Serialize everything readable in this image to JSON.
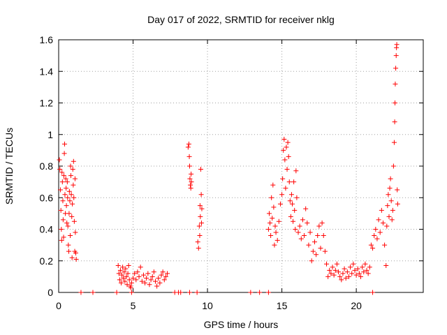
{
  "chart_data": {
    "type": "scatter",
    "title": "Day 017 of 2022, SRMTID for receiver nklg",
    "xlabel": "GPS time / hours",
    "ylabel": "SRMTID / TECUs",
    "xlim": [
      0,
      24.5
    ],
    "ylim": [
      0,
      1.6
    ],
    "xticks": [
      0,
      5,
      10,
      15,
      20
    ],
    "yticks": [
      0,
      0.2,
      0.4,
      0.6,
      0.8,
      1,
      1.2,
      1.4,
      1.6
    ],
    "ytick_labels": [
      "0",
      "0.2",
      "0.4",
      "0.6",
      "0.8",
      "1",
      "1.2",
      "1.4",
      "1.6"
    ],
    "grid": true,
    "marker": "+",
    "color": "#ff0000",
    "series": [
      {
        "name": "SRMTID",
        "points": [
          [
            0.05,
            0.84
          ],
          [
            0.08,
            0.78
          ],
          [
            0.12,
            0.65
          ],
          [
            0.15,
            0.52
          ],
          [
            0.18,
            0.4
          ],
          [
            0.2,
            0.33
          ],
          [
            0.22,
            0.76
          ],
          [
            0.25,
            0.7
          ],
          [
            0.28,
            0.58
          ],
          [
            0.3,
            0.46
          ],
          [
            0.33,
            0.35
          ],
          [
            0.35,
            0.74
          ],
          [
            0.38,
            0.88
          ],
          [
            0.4,
            0.94
          ],
          [
            0.42,
            0.62
          ],
          [
            0.45,
            0.5
          ],
          [
            0.48,
            0.72
          ],
          [
            0.5,
            0.66
          ],
          [
            0.52,
            0.55
          ],
          [
            0.55,
            0.44
          ],
          [
            0.58,
            0.7
          ],
          [
            0.6,
            0.6
          ],
          [
            0.62,
            0.42
          ],
          [
            0.65,
            0.3
          ],
          [
            0.68,
            0.26
          ],
          [
            0.7,
            0.5
          ],
          [
            0.72,
            0.64
          ],
          [
            0.75,
            0.58
          ],
          [
            0.78,
            0.36
          ],
          [
            0.8,
            0.8
          ],
          [
            0.82,
            0.74
          ],
          [
            0.85,
            0.62
          ],
          [
            0.88,
            0.48
          ],
          [
            0.9,
            0.22
          ],
          [
            0.92,
            0.56
          ],
          [
            0.95,
            0.78
          ],
          [
            0.98,
            0.68
          ],
          [
            1.0,
            0.83
          ],
          [
            1.02,
            0.6
          ],
          [
            1.05,
            0.45
          ],
          [
            1.08,
            0.26
          ],
          [
            1.1,
            0.72
          ],
          [
            1.12,
            0.38
          ],
          [
            1.15,
            0.25
          ],
          [
            1.18,
            0.21
          ],
          [
            1.5,
            0.0
          ],
          [
            2.3,
            0.0
          ],
          [
            3.9,
            0.0
          ],
          [
            4.9,
            0.0
          ],
          [
            7.8,
            0.0
          ],
          [
            8.05,
            0.0
          ],
          [
            8.2,
            0.0
          ],
          [
            8.8,
            0.0
          ],
          [
            9.3,
            0.0
          ],
          [
            12.9,
            0.0
          ],
          [
            13.5,
            0.0
          ],
          [
            14.1,
            0.0
          ],
          [
            21.1,
            0.0
          ],
          [
            4.0,
            0.17
          ],
          [
            4.05,
            0.12
          ],
          [
            4.1,
            0.08
          ],
          [
            4.15,
            0.14
          ],
          [
            4.2,
            0.06
          ],
          [
            4.25,
            0.11
          ],
          [
            4.3,
            0.16
          ],
          [
            4.35,
            0.09
          ],
          [
            4.4,
            0.13
          ],
          [
            4.45,
            0.07
          ],
          [
            4.5,
            0.15
          ],
          [
            4.55,
            0.1
          ],
          [
            4.6,
            0.05
          ],
          [
            4.65,
            0.12
          ],
          [
            4.7,
            0.17
          ],
          [
            4.75,
            0.08
          ],
          [
            4.8,
            0.04
          ],
          [
            4.85,
            0.03
          ],
          [
            4.9,
            0.06
          ],
          [
            5.0,
            0.09
          ],
          [
            5.1,
            0.12
          ],
          [
            5.2,
            0.08
          ],
          [
            5.3,
            0.13
          ],
          [
            5.4,
            0.1
          ],
          [
            5.5,
            0.16
          ],
          [
            5.6,
            0.07
          ],
          [
            5.7,
            0.11
          ],
          [
            5.8,
            0.06
          ],
          [
            5.9,
            0.09
          ],
          [
            6.0,
            0.12
          ],
          [
            6.1,
            0.05
          ],
          [
            6.2,
            0.08
          ],
          [
            6.3,
            0.1
          ],
          [
            6.4,
            0.13
          ],
          [
            6.5,
            0.07
          ],
          [
            6.6,
            0.04
          ],
          [
            6.7,
            0.09
          ],
          [
            6.8,
            0.06
          ],
          [
            6.9,
            0.11
          ],
          [
            7.0,
            0.13
          ],
          [
            7.1,
            0.08
          ],
          [
            7.2,
            0.1
          ],
          [
            7.3,
            0.12
          ],
          [
            8.7,
            0.92
          ],
          [
            8.75,
            0.94
          ],
          [
            8.78,
            0.86
          ],
          [
            8.8,
            0.8
          ],
          [
            8.82,
            0.72
          ],
          [
            8.85,
            0.68
          ],
          [
            8.88,
            0.66
          ],
          [
            8.9,
            0.75
          ],
          [
            8.92,
            0.7
          ],
          [
            9.35,
            0.32
          ],
          [
            9.4,
            0.28
          ],
          [
            9.45,
            0.42
          ],
          [
            9.48,
            0.36
          ],
          [
            9.5,
            0.55
          ],
          [
            9.52,
            0.48
          ],
          [
            9.55,
            0.78
          ],
          [
            9.58,
            0.62
          ],
          [
            9.6,
            0.44
          ],
          [
            9.62,
            0.53
          ],
          [
            14.1,
            0.4
          ],
          [
            14.15,
            0.5
          ],
          [
            14.2,
            0.44
          ],
          [
            14.25,
            0.36
          ],
          [
            14.3,
            0.6
          ],
          [
            14.35,
            0.47
          ],
          [
            14.4,
            0.68
          ],
          [
            14.45,
            0.54
          ],
          [
            14.5,
            0.3
          ],
          [
            14.55,
            0.42
          ],
          [
            14.6,
            0.38
          ],
          [
            14.7,
            0.33
          ],
          [
            14.8,
            0.45
          ],
          [
            14.9,
            0.56
          ],
          [
            15.0,
            0.62
          ],
          [
            15.05,
            0.72
          ],
          [
            15.1,
            0.9
          ],
          [
            15.15,
            0.97
          ],
          [
            15.2,
            0.84
          ],
          [
            15.25,
            0.66
          ],
          [
            15.3,
            0.92
          ],
          [
            15.35,
            0.78
          ],
          [
            15.4,
            0.95
          ],
          [
            15.45,
            0.86
          ],
          [
            15.5,
            0.7
          ],
          [
            15.55,
            0.58
          ],
          [
            15.6,
            0.48
          ],
          [
            15.65,
            0.62
          ],
          [
            15.7,
            0.56
          ],
          [
            15.75,
            0.45
          ],
          [
            15.8,
            0.7
          ],
          [
            15.85,
            0.52
          ],
          [
            15.9,
            0.4
          ],
          [
            15.95,
            0.77
          ],
          [
            16.0,
            0.6
          ],
          [
            16.1,
            0.38
          ],
          [
            16.2,
            0.42
          ],
          [
            16.3,
            0.34
          ],
          [
            16.4,
            0.46
          ],
          [
            16.5,
            0.36
          ],
          [
            16.6,
            0.53
          ],
          [
            16.7,
            0.44
          ],
          [
            16.8,
            0.3
          ],
          [
            16.9,
            0.38
          ],
          [
            17.0,
            0.2
          ],
          [
            17.1,
            0.26
          ],
          [
            17.2,
            0.32
          ],
          [
            17.3,
            0.24
          ],
          [
            17.4,
            0.36
          ],
          [
            17.5,
            0.42
          ],
          [
            17.6,
            0.28
          ],
          [
            17.7,
            0.44
          ],
          [
            17.8,
            0.36
          ],
          [
            17.9,
            0.26
          ],
          [
            18.0,
            0.18
          ],
          [
            18.1,
            0.1
          ],
          [
            18.2,
            0.14
          ],
          [
            18.3,
            0.12
          ],
          [
            18.4,
            0.16
          ],
          [
            18.5,
            0.11
          ],
          [
            18.6,
            0.14
          ],
          [
            18.7,
            0.18
          ],
          [
            18.8,
            0.13
          ],
          [
            18.9,
            0.1
          ],
          [
            19.0,
            0.08
          ],
          [
            19.1,
            0.12
          ],
          [
            19.2,
            0.15
          ],
          [
            19.3,
            0.09
          ],
          [
            19.4,
            0.13
          ],
          [
            19.5,
            0.1
          ],
          [
            19.6,
            0.16
          ],
          [
            19.7,
            0.12
          ],
          [
            19.8,
            0.18
          ],
          [
            19.9,
            0.14
          ],
          [
            20.0,
            0.11
          ],
          [
            20.1,
            0.15
          ],
          [
            20.2,
            0.12
          ],
          [
            20.3,
            0.1
          ],
          [
            20.4,
            0.16
          ],
          [
            20.5,
            0.13
          ],
          [
            20.6,
            0.18
          ],
          [
            20.7,
            0.14
          ],
          [
            20.8,
            0.12
          ],
          [
            20.9,
            0.16
          ],
          [
            21.0,
            0.3
          ],
          [
            21.1,
            0.28
          ],
          [
            21.2,
            0.36
          ],
          [
            21.3,
            0.4
          ],
          [
            21.4,
            0.34
          ],
          [
            21.5,
            0.46
          ],
          [
            21.6,
            0.38
          ],
          [
            21.7,
            0.52
          ],
          [
            21.8,
            0.44
          ],
          [
            21.9,
            0.3
          ],
          [
            22.0,
            0.17
          ],
          [
            22.05,
            0.42
          ],
          [
            22.1,
            0.55
          ],
          [
            22.15,
            0.62
          ],
          [
            22.2,
            0.48
          ],
          [
            22.25,
            0.66
          ],
          [
            22.3,
            0.72
          ],
          [
            22.35,
            0.58
          ],
          [
            22.4,
            0.46
          ],
          [
            22.45,
            0.52
          ],
          [
            22.5,
            0.8
          ],
          [
            22.55,
            0.95
          ],
          [
            22.58,
            1.08
          ],
          [
            22.6,
            1.2
          ],
          [
            22.62,
            1.32
          ],
          [
            22.65,
            1.42
          ],
          [
            22.68,
            1.5
          ],
          [
            22.7,
            1.55
          ],
          [
            22.72,
            1.57
          ],
          [
            22.75,
            0.65
          ],
          [
            22.78,
            0.56
          ]
        ]
      }
    ]
  }
}
